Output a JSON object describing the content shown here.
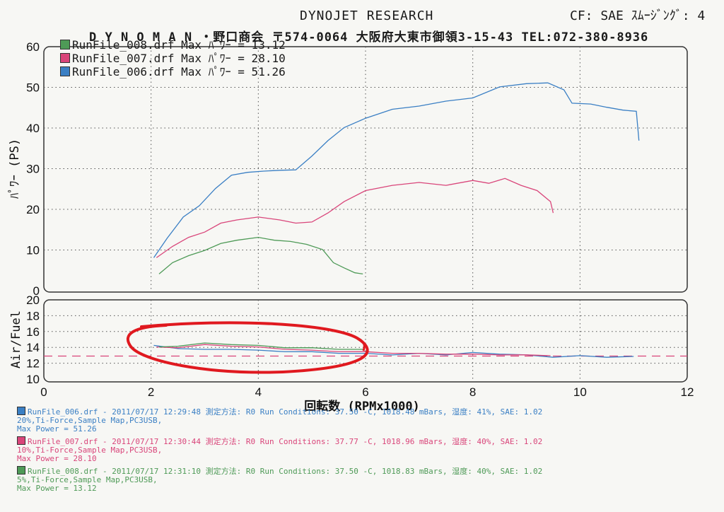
{
  "header": {
    "title": "DYNOJET  RESEARCH",
    "cf_smoothing": "CF: SAE  ｽﾑｰｼﾞﾝｸﾞ: 4",
    "shop_line": "D Y N O M A N ・野口商会  〒574-0064  大阪府大東市御領3-15-43  TEL:072-380-8936"
  },
  "legend": [
    {
      "label": "RunFile_008.drf Max ﾊﾟﾜｰ = 13.12",
      "color": "#4e9a57"
    },
    {
      "label": "RunFile_007.drf Max ﾊﾟﾜｰ = 28.10",
      "color": "#d9457a"
    },
    {
      "label": "RunFile_006.drf Max ﾊﾟﾜｰ = 51.26",
      "color": "#3a7fc4"
    }
  ],
  "footer": [
    {
      "color": "#3a7fc4",
      "lines": [
        "RunFile_006.drf - 2011/07/17 12:29:48  測定方法: R0  Run Conditions: 37.50 -C, 1018.48 mBars,  湿度: 41%, SAE: 1.02",
        "20%,Ti-Force,Sample Map,PC3USB,",
        "Max Power = 51.26"
      ]
    },
    {
      "color": "#d9457a",
      "lines": [
        "RunFile_007.drf - 2011/07/17 12:30:44  測定方法: R0  Run Conditions: 37.77 -C, 1018.96 mBars,  湿度: 40%, SAE: 1.02",
        "10%,Ti-Force,Sample Map,PC3USB,",
        "Max Power = 28.10"
      ]
    },
    {
      "color": "#4e9a57",
      "lines": [
        "RunFile_008.drf - 2011/07/17 12:31:10  測定方法: R0  Run Conditions: 37.50 -C, 1018.83 mBars,  湿度: 40%, SAE: 1.02",
        "5%,Ti-Force,Sample Map,PC3USB,",
        "Max Power = 13.12"
      ]
    }
  ],
  "chart_data": [
    {
      "type": "line",
      "ylabel": "ﾊﾟﾜｰ (PS)",
      "ylim": [
        0,
        60
      ],
      "xlim": [
        0,
        12
      ],
      "yticks": [
        "0",
        "10",
        "20",
        "30",
        "40",
        "50",
        "60"
      ],
      "grid": true,
      "series": [
        {
          "name": "RunFile_006.drf",
          "color": "#3a7fc4",
          "x": [
            2.05,
            2.3,
            2.6,
            2.9,
            3.2,
            3.5,
            3.8,
            4.1,
            4.4,
            4.7,
            5.0,
            5.3,
            5.6,
            6.0,
            6.5,
            7.0,
            7.5,
            8.0,
            8.5,
            9.0,
            9.4,
            9.7,
            9.85,
            10.2,
            10.5,
            10.8,
            11.05,
            11.1
          ],
          "y": [
            8,
            13,
            18,
            21,
            25,
            28.5,
            29,
            29.5,
            29.5,
            29.8,
            33,
            37,
            40,
            42.5,
            44.5,
            45.5,
            46.5,
            47.5,
            50,
            51,
            51,
            49.5,
            46,
            46,
            45,
            44.5,
            44,
            37
          ]
        },
        {
          "name": "RunFile_007.drf",
          "color": "#d9457a",
          "x": [
            2.1,
            2.4,
            2.7,
            3.0,
            3.3,
            3.6,
            4.0,
            4.4,
            4.7,
            5.0,
            5.3,
            5.6,
            6.0,
            6.5,
            7.0,
            7.5,
            8.0,
            8.3,
            8.6,
            8.9,
            9.2,
            9.45,
            9.5
          ],
          "y": [
            8,
            11,
            13,
            14.5,
            16.5,
            17.5,
            18,
            17.5,
            16.5,
            17,
            19,
            22,
            24.5,
            26,
            26.5,
            26,
            27,
            26.5,
            27.5,
            26,
            24.5,
            22,
            19
          ]
        },
        {
          "name": "RunFile_008.drf",
          "color": "#4e9a57",
          "x": [
            2.15,
            2.4,
            2.7,
            3.0,
            3.3,
            3.6,
            4.0,
            4.3,
            4.6,
            4.9,
            5.2,
            5.4,
            5.6,
            5.8,
            5.95
          ],
          "y": [
            4,
            7,
            8.5,
            10,
            11.5,
            12.5,
            13,
            12.5,
            12,
            11.5,
            10,
            7,
            5.5,
            4.5,
            4
          ]
        }
      ]
    },
    {
      "type": "line",
      "ylabel": "Air/Fuel",
      "xlabel": "回転数 (RPMx1000)",
      "ylim": [
        10,
        20
      ],
      "xlim": [
        0,
        12
      ],
      "yticks": [
        "10",
        "12",
        "14",
        "16",
        "18",
        "20"
      ],
      "xticks": [
        "0",
        "2",
        "4",
        "6",
        "8",
        "10",
        "12"
      ],
      "grid": true,
      "reference_line": 12.9,
      "series": [
        {
          "name": "RunFile_006.drf",
          "color": "#3a7fc4",
          "x": [
            2.05,
            2.5,
            3.0,
            3.5,
            4.0,
            4.5,
            5.0,
            5.5,
            6.0,
            6.5,
            7.0,
            7.5,
            8.0,
            8.5,
            9.0,
            9.5,
            10.0,
            10.5,
            11.0
          ],
          "y": [
            14.2,
            13.9,
            13.7,
            13.8,
            13.6,
            13.5,
            13.4,
            13.3,
            13.2,
            13.1,
            13.2,
            13.1,
            13.3,
            13.2,
            13.0,
            12.8,
            12.9,
            12.8,
            12.8
          ]
        },
        {
          "name": "RunFile_007.drf",
          "color": "#d9457a",
          "x": [
            2.1,
            2.5,
            3.0,
            3.5,
            4.0,
            4.5,
            5.0,
            5.5,
            6.0,
            6.5,
            7.0,
            7.5,
            8.0,
            8.5,
            9.0,
            9.45
          ],
          "y": [
            14.0,
            14.0,
            14.3,
            14.2,
            14.0,
            13.8,
            13.6,
            13.5,
            13.4,
            13.3,
            13.2,
            13.2,
            13.1,
            13.1,
            13.0,
            13.0
          ]
        },
        {
          "name": "RunFile_008.drf",
          "color": "#4e9a57",
          "x": [
            2.15,
            2.5,
            3.0,
            3.5,
            4.0,
            4.5,
            5.0,
            5.5,
            5.95
          ],
          "y": [
            14.0,
            14.2,
            14.5,
            14.4,
            14.2,
            14.0,
            13.9,
            13.8,
            13.7
          ]
        }
      ],
      "annotation": "red hand-drawn ellipse around 2k-6k rpm air/fuel region"
    }
  ]
}
